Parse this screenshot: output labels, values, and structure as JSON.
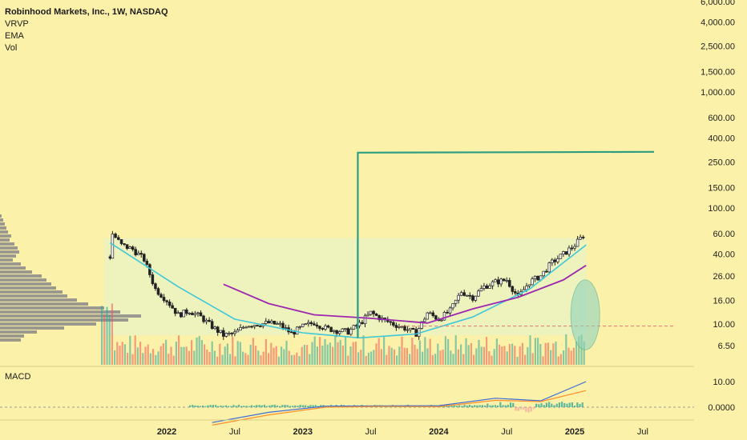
{
  "header": {
    "title": "Robinhood Markets, Inc., 1W, NASDAQ",
    "indicators": [
      "VRVP",
      "EMA",
      "Vol"
    ]
  },
  "macd_panel": {
    "label": "MACD"
  },
  "colors": {
    "background": "#fbf1a9",
    "up": "#26a69a",
    "down": "#ef5350",
    "candle": "#222222",
    "ema": "#9c27b0",
    "cup": "#40c8d8",
    "target_line": "#2e9e82",
    "breakout_line": "#3f51d9",
    "macd_line": "#3b6bd6",
    "signal_line": "#ff8f2a",
    "volume_profile": "#8a8a8a"
  },
  "chart_data": {
    "type": "candlestick",
    "title": "Robinhood Markets, Inc., 1W, NASDAQ",
    "y_scale": "log",
    "y_ticks": [
      "6,000.00",
      "4,000.00",
      "2,500.00",
      "1,500.00",
      "1,000.00",
      "600.00",
      "400.00",
      "250.00",
      "150.00",
      "100.00",
      "60.00",
      "40.00",
      "26.00",
      "16.00",
      "10.00",
      "6.50"
    ],
    "x_ticks": [
      "2022",
      "Jul",
      "2023",
      "Jul",
      "2024",
      "Jul",
      "2025",
      "Jul"
    ],
    "macd_ticks": [
      "10.00",
      "0.0000"
    ],
    "price_path": [
      {
        "x": "2021-08",
        "y": 38
      },
      {
        "x": "2021-08",
        "y": 60
      },
      {
        "x": "2021-09",
        "y": 48
      },
      {
        "x": "2021-10",
        "y": 44
      },
      {
        "x": "2021-11",
        "y": 36
      },
      {
        "x": "2021-12",
        "y": 20
      },
      {
        "x": "2022-01",
        "y": 16
      },
      {
        "x": "2022-02",
        "y": 12
      },
      {
        "x": "2022-03",
        "y": 13
      },
      {
        "x": "2022-04",
        "y": 11.5
      },
      {
        "x": "2022-05",
        "y": 9.5
      },
      {
        "x": "2022-06",
        "y": 8
      },
      {
        "x": "2022-07",
        "y": 8.3
      },
      {
        "x": "2022-08",
        "y": 9.8
      },
      {
        "x": "2022-09",
        "y": 10
      },
      {
        "x": "2022-10",
        "y": 10.2
      },
      {
        "x": "2022-11",
        "y": 9.8
      },
      {
        "x": "2022-12",
        "y": 8.3
      },
      {
        "x": "2023-01",
        "y": 9.5
      },
      {
        "x": "2023-02",
        "y": 10.3
      },
      {
        "x": "2023-03",
        "y": 9.2
      },
      {
        "x": "2023-04",
        "y": 8.8
      },
      {
        "x": "2023-05",
        "y": 8.6
      },
      {
        "x": "2023-06",
        "y": 10
      },
      {
        "x": "2023-07",
        "y": 12.5
      },
      {
        "x": "2023-08",
        "y": 11
      },
      {
        "x": "2023-09",
        "y": 10
      },
      {
        "x": "2023-10",
        "y": 9.2
      },
      {
        "x": "2023-11",
        "y": 8.3
      },
      {
        "x": "2023-12",
        "y": 12.5
      },
      {
        "x": "2024-01",
        "y": 11
      },
      {
        "x": "2024-02",
        "y": 13
      },
      {
        "x": "2024-03",
        "y": 19
      },
      {
        "x": "2024-04",
        "y": 17
      },
      {
        "x": "2024-05",
        "y": 21
      },
      {
        "x": "2024-06",
        "y": 23
      },
      {
        "x": "2024-07",
        "y": 24
      },
      {
        "x": "2024-08",
        "y": 17
      },
      {
        "x": "2024-09",
        "y": 23
      },
      {
        "x": "2024-10",
        "y": 26
      },
      {
        "x": "2024-11",
        "y": 34
      },
      {
        "x": "2024-12",
        "y": 40
      },
      {
        "x": "2025-01",
        "y": 48
      },
      {
        "x": "2025-02",
        "y": 62
      }
    ],
    "ema_path": [
      {
        "x": "2022-06",
        "y": 22
      },
      {
        "x": "2022-10",
        "y": 15
      },
      {
        "x": "2023-02",
        "y": 12
      },
      {
        "x": "2023-07",
        "y": 11.2
      },
      {
        "x": "2023-12",
        "y": 10.2
      },
      {
        "x": "2024-04",
        "y": 13.5
      },
      {
        "x": "2024-08",
        "y": 17
      },
      {
        "x": "2024-12",
        "y": 24
      },
      {
        "x": "2025-02",
        "y": 32
      }
    ],
    "cup_path": [
      {
        "x": "2021-08",
        "y": 50
      },
      {
        "x": "2022-02",
        "y": 21
      },
      {
        "x": "2022-07",
        "y": 11
      },
      {
        "x": "2023-01",
        "y": 8.4
      },
      {
        "x": "2023-06",
        "y": 7.6
      },
      {
        "x": "2023-11",
        "y": 8.2
      },
      {
        "x": "2024-04",
        "y": 11.5
      },
      {
        "x": "2024-09",
        "y": 20
      },
      {
        "x": "2025-02",
        "y": 48
      }
    ],
    "annotations": {
      "breakout_x": "2023-06",
      "breakout_from": 7.6,
      "breakout_to": 53,
      "target_level": 300,
      "target_start": "2023-06",
      "target_end": "2025-08",
      "cup_band": [
        8,
        55
      ],
      "dashed_level": 9.6,
      "ellipse_center": "2025-02",
      "ellipse_range": [
        6,
        24
      ]
    },
    "macd": {
      "macd_line": [
        {
          "x": "2022-05",
          "y": -6
        },
        {
          "x": "2022-10",
          "y": -2
        },
        {
          "x": "2023-03",
          "y": 0.4
        },
        {
          "x": "2023-08",
          "y": 0.5
        },
        {
          "x": "2024-01",
          "y": 0.6
        },
        {
          "x": "2024-06",
          "y": 3.5
        },
        {
          "x": "2024-10",
          "y": 2.5
        },
        {
          "x": "2025-02",
          "y": 10
        }
      ],
      "signal_line": [
        {
          "x": "2022-05",
          "y": -7
        },
        {
          "x": "2022-10",
          "y": -3
        },
        {
          "x": "2023-03",
          "y": 0
        },
        {
          "x": "2023-08",
          "y": 0.3
        },
        {
          "x": "2024-01",
          "y": 0.2
        },
        {
          "x": "2024-06",
          "y": 2.7
        },
        {
          "x": "2024-10",
          "y": 2.2
        },
        {
          "x": "2025-02",
          "y": 6.5
        }
      ]
    }
  }
}
